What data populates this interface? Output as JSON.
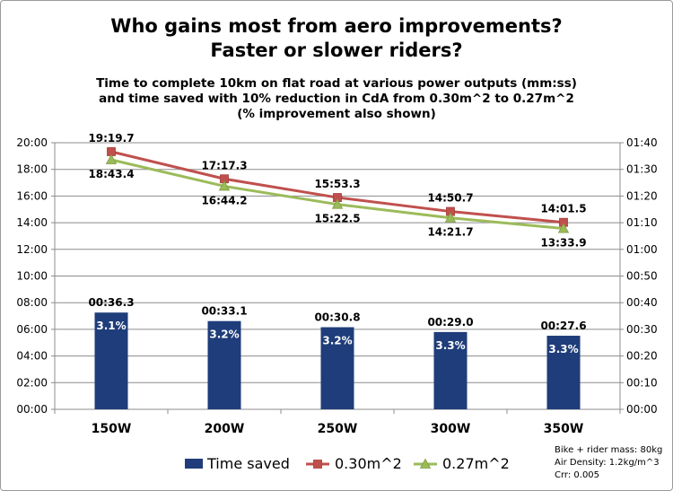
{
  "chart_data": {
    "type": "bar+line",
    "title_lines": [
      "Who gains most from aero improvements?",
      "Faster or slower riders?"
    ],
    "subtitle_lines": [
      "Time to complete 10km on flat road at various power outputs (mm:ss)",
      "and time saved with 10% reduction in CdA from 0.30m^2 to 0.27m^2",
      "(% improvement also shown)"
    ],
    "categories": [
      "150W",
      "200W",
      "250W",
      "300W",
      "350W"
    ],
    "left_axis": {
      "ticks": [
        "00:00",
        "02:00",
        "04:00",
        "06:00",
        "08:00",
        "10:00",
        "12:00",
        "14:00",
        "16:00",
        "18:00",
        "20:00"
      ],
      "range_seconds": [
        0,
        1200
      ]
    },
    "right_axis": {
      "ticks": [
        "00:00",
        "00:10",
        "00:20",
        "00:30",
        "00:40",
        "00:50",
        "01:00",
        "01:10",
        "01:20",
        "01:30",
        "01:40"
      ],
      "range_seconds": [
        0,
        100
      ]
    },
    "series": [
      {
        "name": "Time saved",
        "kind": "bar",
        "axis": "right",
        "color": "#1f3d7a",
        "values_seconds": [
          36.3,
          33.1,
          30.8,
          29.0,
          27.6
        ],
        "labels": [
          "00:36.3",
          "00:33.1",
          "00:30.8",
          "00:29.0",
          "00:27.6"
        ],
        "inner_labels": [
          "3.1%",
          "3.2%",
          "3.2%",
          "3.3%",
          "3.3%"
        ]
      },
      {
        "name": "0.30m^2",
        "kind": "line",
        "axis": "left",
        "color": "#c0504d",
        "marker": "square",
        "values_seconds": [
          1159.7,
          1037.3,
          953.3,
          890.7,
          841.5
        ],
        "labels": [
          "19:19.7",
          "17:17.3",
          "15:53.3",
          "14:50.7",
          "14:01.5"
        ]
      },
      {
        "name": "0.27m^2",
        "kind": "line",
        "axis": "left",
        "color": "#9bbb59",
        "marker": "triangle",
        "values_seconds": [
          1123.4,
          1004.2,
          922.5,
          861.7,
          813.9
        ],
        "labels": [
          "18:43.4",
          "16:44.2",
          "15:22.5",
          "14:21.7",
          "13:33.9"
        ]
      }
    ],
    "legend_position": "bottom",
    "grid": true
  },
  "notes": [
    "Bike + rider mass: 80kg",
    "Air Density: 1.2kg/m^3",
    "Crr: 0.005"
  ]
}
